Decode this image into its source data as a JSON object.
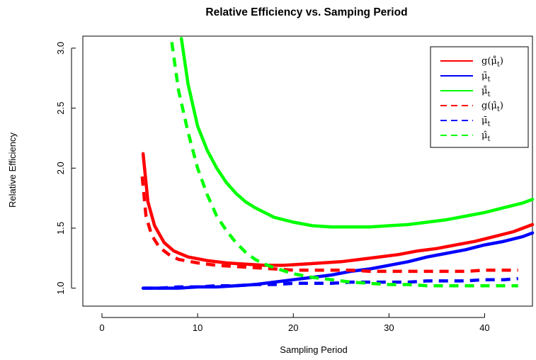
{
  "chart_data": {
    "type": "line",
    "title": "Relative Efficiency vs. Samping Period",
    "xlabel": "Sampling Period",
    "ylabel": "Relative Efficiency",
    "xlim": [
      -2,
      45
    ],
    "ylim": [
      0.85,
      3.1
    ],
    "xticks": [
      0,
      10,
      20,
      30,
      40
    ],
    "xtick_labels": [
      "0",
      "10",
      "20",
      "30",
      "40"
    ],
    "yticks": [
      1.0,
      1.5,
      2.0,
      2.5,
      3.0
    ],
    "ytick_labels": [
      "1.0",
      "1.5",
      "2.0",
      "2.5",
      "3.0"
    ],
    "grid": false,
    "legend_position": "top-right",
    "series": [
      {
        "name": "g(μ̊_t)",
        "label_parts": [
          "g(",
          "μ̊",
          "t",
          ")"
        ],
        "color": "#ff0000",
        "dash": "solid",
        "x": [
          4.3,
          4.8,
          5.5,
          6.5,
          7.5,
          9,
          11,
          13,
          15,
          17,
          19,
          21,
          23,
          25,
          27,
          29,
          31,
          33,
          35,
          37,
          39,
          41,
          43,
          45
        ],
        "y": [
          2.12,
          1.72,
          1.52,
          1.38,
          1.31,
          1.26,
          1.23,
          1.21,
          1.2,
          1.19,
          1.19,
          1.2,
          1.21,
          1.22,
          1.24,
          1.26,
          1.28,
          1.31,
          1.33,
          1.36,
          1.39,
          1.43,
          1.47,
          1.53
        ]
      },
      {
        "name": "μ̄_t",
        "label_parts": [
          "",
          "μ̄",
          "t",
          ""
        ],
        "color": "#0000ff",
        "dash": "solid",
        "x": [
          4.3,
          6,
          8,
          10,
          12,
          14,
          16,
          18,
          20,
          22,
          24,
          26,
          28,
          30,
          32,
          34,
          36,
          38,
          40,
          42,
          44,
          45
        ],
        "y": [
          1.0,
          1.0,
          1.0,
          1.01,
          1.01,
          1.02,
          1.03,
          1.05,
          1.07,
          1.09,
          1.11,
          1.14,
          1.16,
          1.19,
          1.22,
          1.26,
          1.29,
          1.32,
          1.36,
          1.39,
          1.43,
          1.46
        ]
      },
      {
        "name": "μ̊_t",
        "label_parts": [
          "",
          "μ̊",
          "t",
          ""
        ],
        "color": "#00ff00",
        "dash": "solid",
        "x": [
          8.3,
          9,
          10,
          11,
          12,
          13,
          14,
          15,
          16,
          17,
          18,
          20,
          22,
          24,
          26,
          28,
          30,
          32,
          34,
          36,
          38,
          40,
          42,
          44,
          45
        ],
        "y": [
          3.08,
          2.7,
          2.35,
          2.15,
          2.0,
          1.88,
          1.79,
          1.72,
          1.67,
          1.63,
          1.59,
          1.55,
          1.52,
          1.51,
          1.51,
          1.51,
          1.52,
          1.53,
          1.55,
          1.57,
          1.6,
          1.63,
          1.67,
          1.71,
          1.74
        ]
      },
      {
        "name": "g(μ̂_t)",
        "label_parts": [
          "g(",
          "μ̂",
          "t",
          ")"
        ],
        "color": "#ff0000",
        "dash": "dashed",
        "x": [
          4.2,
          4.6,
          5.2,
          6,
          7,
          8,
          10,
          12,
          14,
          16,
          18,
          20,
          22,
          24,
          26,
          28,
          30,
          32,
          34,
          36,
          38,
          40,
          42,
          43.5
        ],
        "y": [
          1.93,
          1.6,
          1.44,
          1.34,
          1.28,
          1.24,
          1.21,
          1.19,
          1.18,
          1.17,
          1.16,
          1.15,
          1.15,
          1.15,
          1.15,
          1.14,
          1.14,
          1.14,
          1.14,
          1.14,
          1.14,
          1.15,
          1.15,
          1.15
        ]
      },
      {
        "name": "μ̄_t",
        "label_parts": [
          "",
          "μ̄",
          "t",
          ""
        ],
        "color": "#0000ff",
        "dash": "dashed",
        "x": [
          4.3,
          6,
          8,
          10,
          12,
          14,
          16,
          18,
          20,
          22,
          24,
          26,
          28,
          30,
          32,
          34,
          36,
          38,
          40,
          42,
          43.5
        ],
        "y": [
          1.0,
          1.0,
          1.01,
          1.01,
          1.02,
          1.02,
          1.03,
          1.03,
          1.04,
          1.04,
          1.04,
          1.05,
          1.05,
          1.05,
          1.05,
          1.06,
          1.06,
          1.06,
          1.07,
          1.07,
          1.08
        ]
      },
      {
        "name": "μ̂_t",
        "label_parts": [
          "",
          "μ̂",
          "t",
          ""
        ],
        "color": "#00ff00",
        "dash": "dashed",
        "x": [
          7.3,
          8,
          9,
          10,
          11,
          12,
          13,
          14,
          15,
          16,
          17,
          18,
          20,
          22,
          24,
          26,
          28,
          30,
          32,
          34,
          36,
          38,
          40,
          42,
          43.5
        ],
        "y": [
          3.05,
          2.65,
          2.3,
          2.0,
          1.78,
          1.6,
          1.48,
          1.38,
          1.3,
          1.24,
          1.2,
          1.17,
          1.12,
          1.09,
          1.07,
          1.05,
          1.04,
          1.03,
          1.03,
          1.02,
          1.02,
          1.02,
          1.02,
          1.02,
          1.02
        ]
      }
    ]
  }
}
